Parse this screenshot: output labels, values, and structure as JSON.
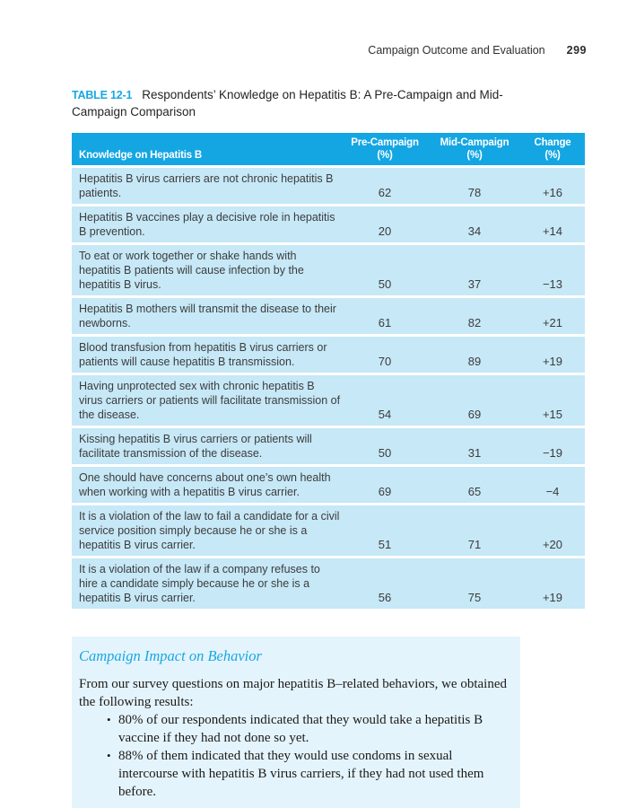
{
  "colors": {
    "accent_cyan": "#18A7E3",
    "table_header_bg": "#14A6E3",
    "table_header_text": "#FFFFFF",
    "table_row_bg": "#C6E8F7",
    "behavior_box_bg": "#E4F4FC",
    "table_body_text": "#3C3C3C",
    "serif_body_text": "#1C1A18"
  },
  "running_header": {
    "title": "Campaign Outcome and Evaluation",
    "page_number": "299"
  },
  "table": {
    "label": "TABLE 12-1",
    "title": "Respondents’ Knowledge on Hepatitis B: A Pre-Campaign and Mid-Campaign Comparison",
    "columns": [
      {
        "label": "Knowledge on Hepatitis B",
        "unit": ""
      },
      {
        "label": "Pre-Campaign",
        "unit": "(%)"
      },
      {
        "label": "Mid-Campaign",
        "unit": "(%)"
      },
      {
        "label": "Change",
        "unit": "(%)"
      }
    ],
    "rows": [
      {
        "statement": "Hepatitis B virus carriers are not chronic hepatitis B patients.",
        "pre": "62",
        "mid": "78",
        "change": "+16"
      },
      {
        "statement": "Hepatitis B vaccines play a decisive role in hepatitis B prevention.",
        "pre": "20",
        "mid": "34",
        "change": "+14"
      },
      {
        "statement": "To eat or work together or shake hands with hepatitis B patients will cause infection by the hepatitis B virus.",
        "pre": "50",
        "mid": "37",
        "change": "−13"
      },
      {
        "statement": "Hepatitis B mothers will transmit the disease to their newborns.",
        "pre": "61",
        "mid": "82",
        "change": "+21"
      },
      {
        "statement": "Blood transfusion from hepatitis B virus carriers or patients will cause hepatitis B transmission.",
        "pre": "70",
        "mid": "89",
        "change": "+19"
      },
      {
        "statement": "Having unprotected sex with chronic hepatitis B virus carriers or patients will facilitate transmission of the disease.",
        "pre": "54",
        "mid": "69",
        "change": "+15"
      },
      {
        "statement": "Kissing hepatitis B virus carriers or patients will facilitate transmission of the disease.",
        "pre": "50",
        "mid": "31",
        "change": "−19"
      },
      {
        "statement": "One should have concerns about one’s own health when working with a hepatitis B virus carrier.",
        "pre": "69",
        "mid": "65",
        "change": "−4"
      },
      {
        "statement": "It is a violation of the law to fail a candidate for a civil service position simply because he or she is a hepatitis B virus carrier.",
        "pre": "51",
        "mid": "71",
        "change": "+20"
      },
      {
        "statement": "It is a violation of the law if a company refuses to hire a candidate simply because he or she is a hepatitis B virus carrier.",
        "pre": "56",
        "mid": "75",
        "change": "+19"
      }
    ]
  },
  "behavior": {
    "heading": "Campaign Impact on Behavior",
    "intro": "From our survey questions on major hepatitis B–related behaviors, we obtained the following results:",
    "bullet_marker": "•",
    "bullets": [
      "80% of our respondents indicated that they would take a hepatitis B vaccine if they had not done so yet.",
      "88% of them indicated that they would use condoms in sexual intercourse with hepatitis B virus carriers, if they had not used them before."
    ]
  }
}
